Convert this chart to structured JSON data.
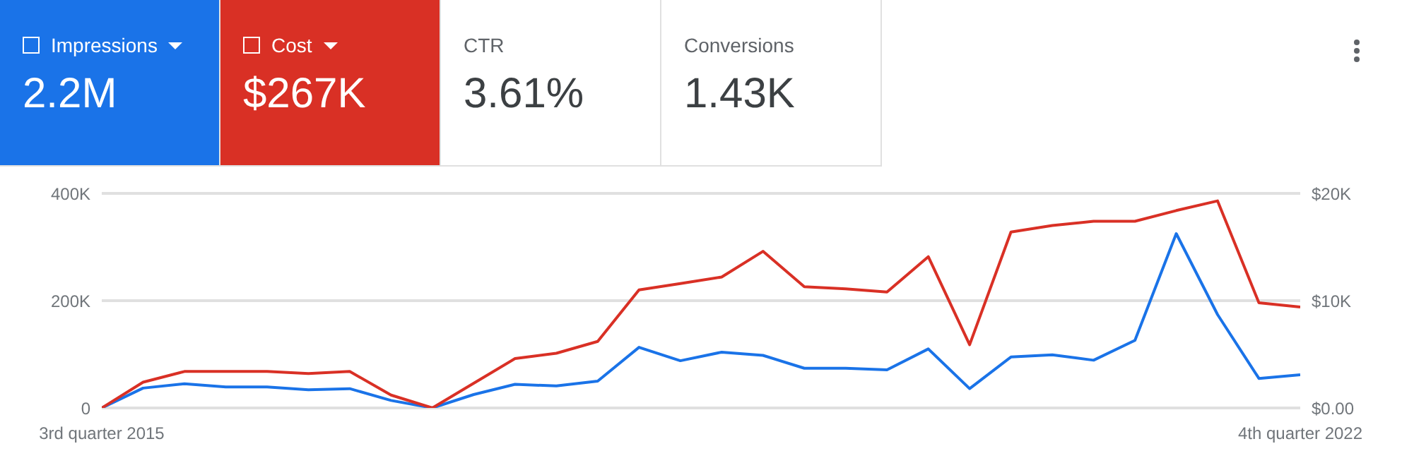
{
  "chart_data": {
    "type": "line",
    "categories": [
      "3rd quarter 2015",
      null,
      null,
      null,
      null,
      null,
      null,
      null,
      null,
      null,
      null,
      null,
      null,
      null,
      null,
      null,
      null,
      null,
      null,
      null,
      null,
      null,
      null,
      null,
      null,
      null,
      null,
      null,
      null,
      "4th quarter 2022"
    ],
    "series": [
      {
        "name": "Impressions",
        "color": "#1a73e8",
        "values": [
          0,
          37000,
          45000,
          39000,
          39000,
          34000,
          36000,
          14000,
          0,
          25000,
          44000,
          41000,
          50000,
          113000,
          88000,
          104000,
          98000,
          74000,
          74000,
          71000,
          110000,
          36000,
          95000,
          99000,
          89000,
          126000,
          325000,
          174000,
          55000,
          62000
        ]
      },
      {
        "name": "Cost",
        "color": "#d93025",
        "axis": "y2",
        "values": [
          0,
          2400,
          3400,
          3400,
          3400,
          3200,
          3400,
          1200,
          0,
          2300,
          4600,
          5100,
          6200,
          11000,
          11600,
          12200,
          14600,
          11300,
          11100,
          10800,
          14100,
          5900,
          16400,
          17000,
          17400,
          17400,
          18400,
          19300,
          9800,
          9400
        ]
      }
    ],
    "ylim": [
      0,
      400000
    ],
    "yticks": [
      0,
      {
        "value": 200000,
        "label": "200K"
      },
      {
        "value": 400000,
        "label": "400K"
      }
    ],
    "y2lim": [
      0,
      20000
    ],
    "y2ticks": [
      {
        "value": 0,
        "label": "$0.00"
      },
      {
        "value": 10000,
        "label": "$10K"
      },
      {
        "value": 20000,
        "label": "$20K"
      }
    ],
    "grid": "y",
    "legend": "top left",
    "marker": "none",
    "line_style": "solid",
    "annotations": [
      "2.2M",
      "$267K",
      "CTR",
      "3.61%",
      "Conversions",
      "1.43K"
    ]
  }
}
